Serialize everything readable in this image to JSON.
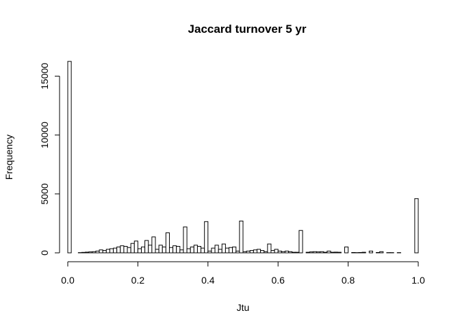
{
  "chart_data": {
    "type": "bar",
    "title": "Jaccard turnover 5 yr",
    "xlabel": "Jtu",
    "ylabel": "Frequency",
    "xlim": [
      0,
      1
    ],
    "ylim": [
      0,
      16300
    ],
    "x_ticks": [
      0.0,
      0.2,
      0.4,
      0.6,
      0.8,
      1.0
    ],
    "x_tick_labels": [
      "0.0",
      "0.2",
      "0.4",
      "0.6",
      "0.8",
      "1.0"
    ],
    "y_ticks": [
      0,
      5000,
      10000,
      15000
    ],
    "y_tick_labels": [
      "0",
      "5000",
      "10000",
      "15000"
    ],
    "grid": false,
    "bin_width": 0.01,
    "bin_starts": [
      0.0,
      0.01,
      0.02,
      0.03,
      0.04,
      0.05,
      0.06,
      0.07,
      0.08,
      0.09,
      0.1,
      0.11,
      0.12,
      0.13,
      0.14,
      0.15,
      0.16,
      0.17,
      0.18,
      0.19,
      0.2,
      0.21,
      0.22,
      0.23,
      0.24,
      0.25,
      0.26,
      0.27,
      0.28,
      0.29,
      0.3,
      0.31,
      0.32,
      0.33,
      0.34,
      0.35,
      0.36,
      0.37,
      0.38,
      0.39,
      0.4,
      0.41,
      0.42,
      0.43,
      0.44,
      0.45,
      0.46,
      0.47,
      0.48,
      0.49,
      0.5,
      0.51,
      0.52,
      0.53,
      0.54,
      0.55,
      0.56,
      0.57,
      0.58,
      0.59,
      0.6,
      0.61,
      0.62,
      0.63,
      0.64,
      0.65,
      0.66,
      0.67,
      0.68,
      0.69,
      0.7,
      0.71,
      0.72,
      0.73,
      0.74,
      0.75,
      0.76,
      0.77,
      0.78,
      0.79,
      0.8,
      0.81,
      0.82,
      0.83,
      0.84,
      0.85,
      0.86,
      0.87,
      0.88,
      0.89,
      0.9,
      0.91,
      0.92,
      0.93,
      0.94,
      0.95,
      0.96,
      0.97,
      0.98,
      0.99
    ],
    "values": [
      16250,
      0,
      0,
      20,
      40,
      60,
      80,
      100,
      150,
      250,
      200,
      300,
      350,
      400,
      500,
      600,
      550,
      450,
      800,
      1000,
      350,
      500,
      1050,
      650,
      1350,
      300,
      650,
      500,
      1700,
      450,
      600,
      550,
      250,
      2200,
      350,
      500,
      650,
      550,
      400,
      2650,
      150,
      400,
      650,
      300,
      750,
      400,
      450,
      500,
      150,
      2700,
      100,
      150,
      200,
      250,
      300,
      200,
      100,
      750,
      200,
      300,
      150,
      100,
      150,
      100,
      50,
      50,
      1900,
      0,
      50,
      80,
      100,
      80,
      100,
      50,
      150,
      50,
      60,
      50,
      0,
      500,
      0,
      30,
      20,
      30,
      50,
      0,
      150,
      0,
      30,
      100,
      0,
      20,
      20,
      0,
      20,
      0,
      0,
      0,
      0,
      4600
    ]
  }
}
